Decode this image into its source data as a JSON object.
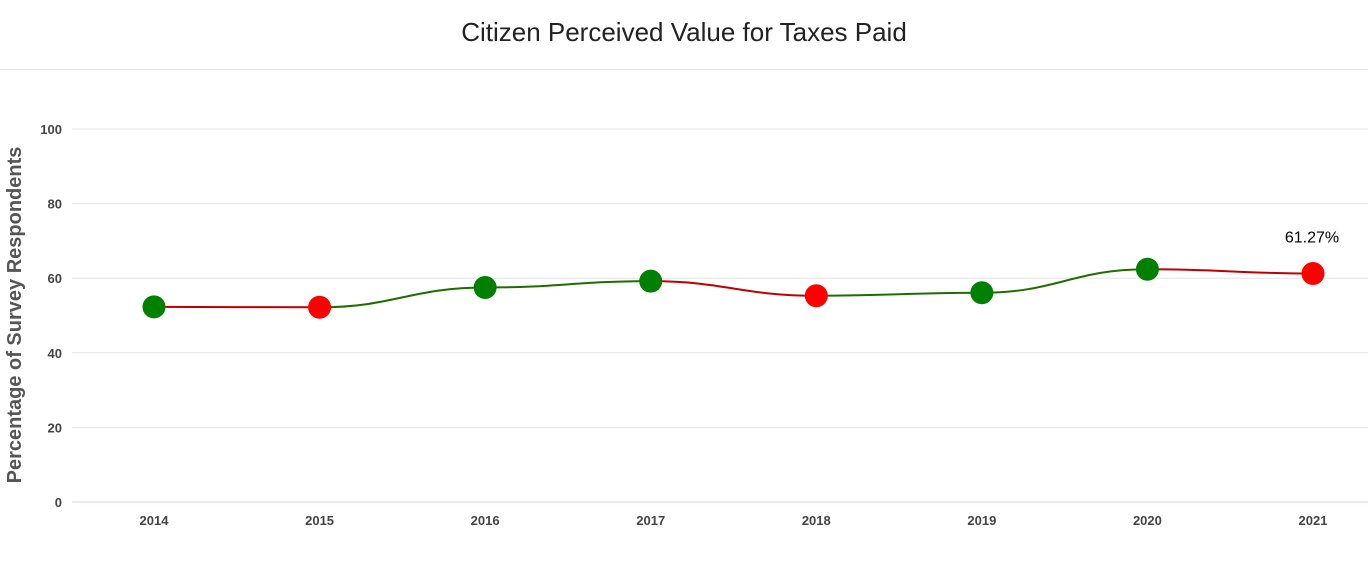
{
  "chart_data": {
    "type": "line",
    "title": "Citizen Perceived Value for Taxes Paid",
    "ylabel": "Percentage of Survey Respondents",
    "xlabel": "",
    "categories": [
      "2014",
      "2015",
      "2016",
      "2017",
      "2018",
      "2019",
      "2020",
      "2021"
    ],
    "values": [
      52.3,
      52.2,
      57.5,
      59.2,
      55.3,
      56.1,
      62.4,
      61.27
    ],
    "ylim": [
      0,
      100
    ],
    "yticks": [
      0,
      20,
      40,
      60,
      80,
      100
    ],
    "grid": true,
    "colors": {
      "increase": "#008000",
      "decrease": "#ff0000",
      "line_increase": "#1f6d00",
      "line_decrease": "#c00000"
    },
    "annotations": [
      {
        "category": "2021",
        "text": "61.27%"
      }
    ]
  }
}
